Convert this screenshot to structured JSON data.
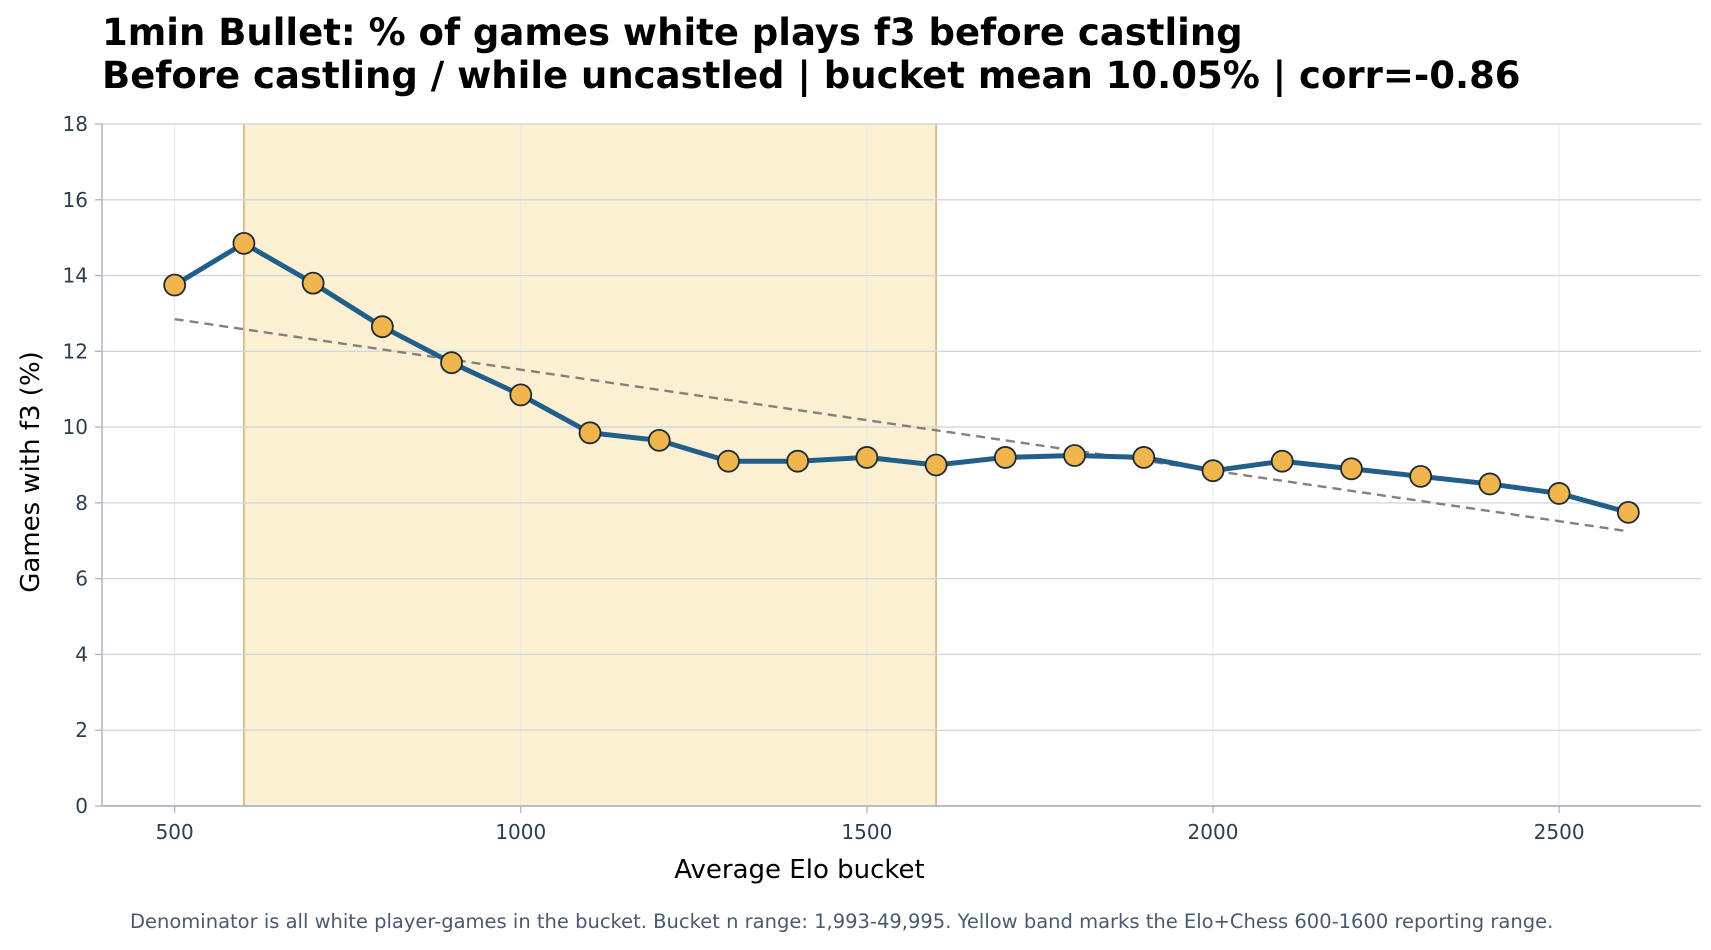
{
  "title": "1min Bullet: % of games white plays f3 before castling",
  "subtitle": "Before castling / while uncastled | bucket mean 10.05% | corr=-0.86",
  "footnote": "Denominator is all white player-games in the bucket. Bucket n range: 1,993-49,995. Yellow band marks the Elo+Chess 600-1600 reporting range.",
  "chart_data": {
    "type": "line",
    "title": "1min Bullet: % of games white plays f3 before castling",
    "subtitle": "Before castling / while uncastled | bucket mean 10.05% | corr=-0.86",
    "xlabel": "Average Elo bucket",
    "ylabel": "Games with f3 (%)",
    "xlim": [
      395,
      2705
    ],
    "ylim": [
      0,
      18
    ],
    "xticks": [
      500,
      1000,
      1500,
      2000,
      2500
    ],
    "yticks": [
      0,
      2,
      4,
      6,
      8,
      10,
      12,
      14,
      16,
      18
    ],
    "grid": true,
    "band": {
      "x_start": 600,
      "x_end": 1600,
      "color": "#fbf1d2",
      "edge_color": "#d9b27a"
    },
    "series": [
      {
        "x": [
          500,
          600,
          700,
          800,
          900,
          1000,
          1100,
          1200,
          1300,
          1400,
          1500,
          1600,
          1700,
          1800,
          1900,
          2000,
          2100,
          2200,
          2300,
          2400,
          2500,
          2600
        ],
        "values": [
          13.75,
          14.85,
          13.8,
          12.65,
          11.7,
          10.85,
          9.85,
          9.65,
          9.1,
          9.1,
          9.2,
          9.0,
          9.2,
          9.25,
          9.2,
          8.85,
          9.1,
          8.9,
          8.7,
          8.5,
          8.25,
          7.75
        ],
        "line_color": "#215e8a",
        "marker_color": "#f1b54d"
      }
    ],
    "trendline": {
      "x": [
        500,
        2600
      ],
      "values": [
        12.85,
        7.25
      ],
      "color": "#888077",
      "style": "dashed"
    }
  }
}
